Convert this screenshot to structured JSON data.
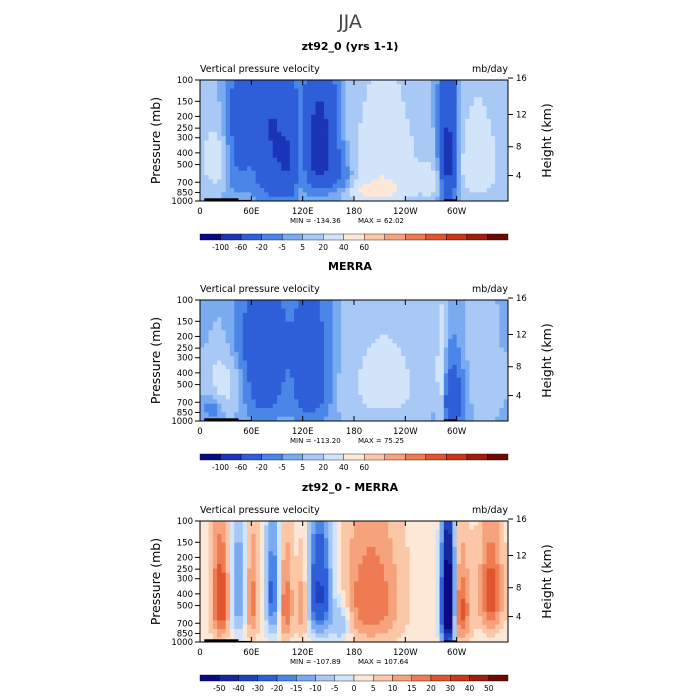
{
  "page": {
    "title": "JJA"
  },
  "chart_data": [
    {
      "type": "heatmap",
      "title": "zt92_0 (yrs 1-1)",
      "variable": "Vertical pressure velocity",
      "units": "mb/day",
      "ylabel": "Pressure (mb)",
      "ylabel_right": "Height (km)",
      "x_ticks": [
        "0",
        "60E",
        "120E",
        "180",
        "120W",
        "60W"
      ],
      "y_ticks": [
        "100",
        "150",
        "200",
        "250",
        "300",
        "400",
        "500",
        "700",
        "850",
        "1000"
      ],
      "y_ticks_right": [
        "16",
        "12",
        "8",
        "4"
      ],
      "min_label": "MIN = -134.36",
      "max_label": "MAX =  62.02",
      "min": -134.36,
      "max": 62.02,
      "colorbar_labels": [
        "-100",
        "-60",
        "-20",
        "-5",
        "5",
        "20",
        "40",
        "60"
      ],
      "colorbar_colors": [
        "#0a0a82",
        "#1b34b8",
        "#2f5fd8",
        "#4a86e8",
        "#7aaaf0",
        "#a8c8f5",
        "#d2e4fa",
        "#fde8d8",
        "#fbc7a7",
        "#f6a27c",
        "#ee7b52",
        "#e0552e",
        "#c9361a",
        "#a01e0c",
        "#6e0a04"
      ],
      "features": [
        {
          "lon": 20,
          "p": 450,
          "v": 35,
          "sx": 12,
          "sp": 250
        },
        {
          "lon": 42,
          "p": 400,
          "v": -30,
          "sx": 14,
          "sp": 300
        },
        {
          "lon": 85,
          "p": 400,
          "v": -60,
          "sx": 14,
          "sp": 350
        },
        {
          "lon": 105,
          "p": 500,
          "v": -40,
          "sx": 8,
          "sp": 300
        },
        {
          "lon": 118,
          "p": 450,
          "v": 25,
          "sx": 5,
          "sp": 250
        },
        {
          "lon": 140,
          "p": 380,
          "v": -90,
          "sx": 14,
          "sp": 280
        },
        {
          "lon": 168,
          "p": 700,
          "v": -25,
          "sx": 10,
          "sp": 200
        },
        {
          "lon": 215,
          "p": 480,
          "v": 35,
          "sx": 30,
          "sp": 350
        },
        {
          "lon": 200,
          "p": 850,
          "v": 30,
          "sx": 30,
          "sp": 120
        },
        {
          "lon": 290,
          "p": 450,
          "v": -85,
          "sx": 7,
          "sp": 350
        },
        {
          "lon": 325,
          "p": 500,
          "v": 35,
          "sx": 18,
          "sp": 300
        },
        {
          "lon": 270,
          "p": 700,
          "v": 25,
          "sx": 10,
          "sp": 150
        },
        {
          "lon": 60,
          "p": 180,
          "v": -15,
          "sx": 30,
          "sp": 100
        }
      ]
    },
    {
      "type": "heatmap",
      "title": "MERRA",
      "variable": "Vertical pressure velocity",
      "units": "mb/day",
      "ylabel": "Pressure (mb)",
      "ylabel_right": "Height (km)",
      "x_ticks": [
        "0",
        "60E",
        "120E",
        "180",
        "120W",
        "60W"
      ],
      "y_ticks": [
        "100",
        "150",
        "200",
        "250",
        "300",
        "400",
        "500",
        "700",
        "850",
        "1000"
      ],
      "y_ticks_right": [
        "16",
        "12",
        "8",
        "4"
      ],
      "min_label": "MIN = -113.20",
      "max_label": "MAX =  75.25",
      "min": -113.2,
      "max": 75.25,
      "colorbar_labels": [
        "-100",
        "-60",
        "-20",
        "-5",
        "5",
        "20",
        "40",
        "60"
      ],
      "colorbar_colors": [
        "#0a0a82",
        "#1b34b8",
        "#2f5fd8",
        "#4a86e8",
        "#7aaaf0",
        "#a8c8f5",
        "#d2e4fa",
        "#fde8d8",
        "#fbc7a7",
        "#f6a27c",
        "#ee7b52",
        "#e0552e",
        "#c9361a",
        "#a01e0c",
        "#6e0a04"
      ],
      "features": [
        {
          "lon": 25,
          "p": 500,
          "v": 30,
          "sx": 14,
          "sp": 250
        },
        {
          "lon": 15,
          "p": 750,
          "v": -25,
          "sx": 10,
          "sp": 150
        },
        {
          "lon": 75,
          "p": 400,
          "v": -45,
          "sx": 16,
          "sp": 350
        },
        {
          "lon": 130,
          "p": 450,
          "v": -45,
          "sx": 16,
          "sp": 350
        },
        {
          "lon": 215,
          "p": 500,
          "v": 25,
          "sx": 35,
          "sp": 350
        },
        {
          "lon": 282,
          "p": 500,
          "v": 40,
          "sx": 4,
          "sp": 300
        },
        {
          "lon": 295,
          "p": 650,
          "v": -55,
          "sx": 10,
          "sp": 250
        },
        {
          "lon": 60,
          "p": 200,
          "v": -15,
          "sx": 40,
          "sp": 120
        },
        {
          "lon": 330,
          "p": 450,
          "v": 12,
          "sx": 18,
          "sp": 300
        }
      ]
    },
    {
      "type": "heatmap",
      "title": "zt92_0 - MERRA",
      "variable": "Vertical pressure velocity",
      "units": "mb/day",
      "ylabel": "Pressure (mb)",
      "ylabel_right": "Height (km)",
      "x_ticks": [
        "0",
        "60E",
        "120E",
        "180",
        "120W",
        "60W"
      ],
      "y_ticks": [
        "100",
        "150",
        "200",
        "250",
        "300",
        "400",
        "500",
        "700",
        "850",
        "1000"
      ],
      "y_ticks_right": [
        "16",
        "12",
        "8",
        "4"
      ],
      "min_label": "MIN = -107.89",
      "max_label": "MAX = 107.64",
      "min": -107.89,
      "max": 107.64,
      "colorbar_labels": [
        "-50",
        "-40",
        "-30",
        "-20",
        "-15",
        "-10",
        "-5",
        "0",
        "5",
        "10",
        "15",
        "20",
        "30",
        "40",
        "50"
      ],
      "colorbar_colors": [
        "#0a0a82",
        "#14289e",
        "#1f42c0",
        "#2f5fd8",
        "#4a86e8",
        "#7aaaf0",
        "#a8c8f5",
        "#d2e4fa",
        "#fde8d8",
        "#fbc7a7",
        "#f6a27c",
        "#ee7b52",
        "#e0552e",
        "#c9361a",
        "#a01e0c",
        "#6e0a04"
      ],
      "features": [
        {
          "lon": 25,
          "p": 450,
          "v": 25,
          "sx": 8,
          "sp": 300
        },
        {
          "lon": 45,
          "p": 400,
          "v": -20,
          "sx": 8,
          "sp": 300
        },
        {
          "lon": 60,
          "p": 450,
          "v": 18,
          "sx": 6,
          "sp": 300
        },
        {
          "lon": 85,
          "p": 400,
          "v": -25,
          "sx": 6,
          "sp": 300
        },
        {
          "lon": 100,
          "p": 500,
          "v": 18,
          "sx": 6,
          "sp": 300
        },
        {
          "lon": 140,
          "p": 400,
          "v": -35,
          "sx": 10,
          "sp": 300
        },
        {
          "lon": 120,
          "p": 500,
          "v": 15,
          "sx": 5,
          "sp": 250
        },
        {
          "lon": 200,
          "p": 450,
          "v": 18,
          "sx": 25,
          "sp": 350
        },
        {
          "lon": 290,
          "p": 500,
          "v": -80,
          "sx": 5,
          "sp": 380
        },
        {
          "lon": 305,
          "p": 550,
          "v": 20,
          "sx": 8,
          "sp": 300
        },
        {
          "lon": 340,
          "p": 400,
          "v": 22,
          "sx": 10,
          "sp": 250
        },
        {
          "lon": 165,
          "p": 700,
          "v": -15,
          "sx": 8,
          "sp": 200
        }
      ]
    }
  ]
}
